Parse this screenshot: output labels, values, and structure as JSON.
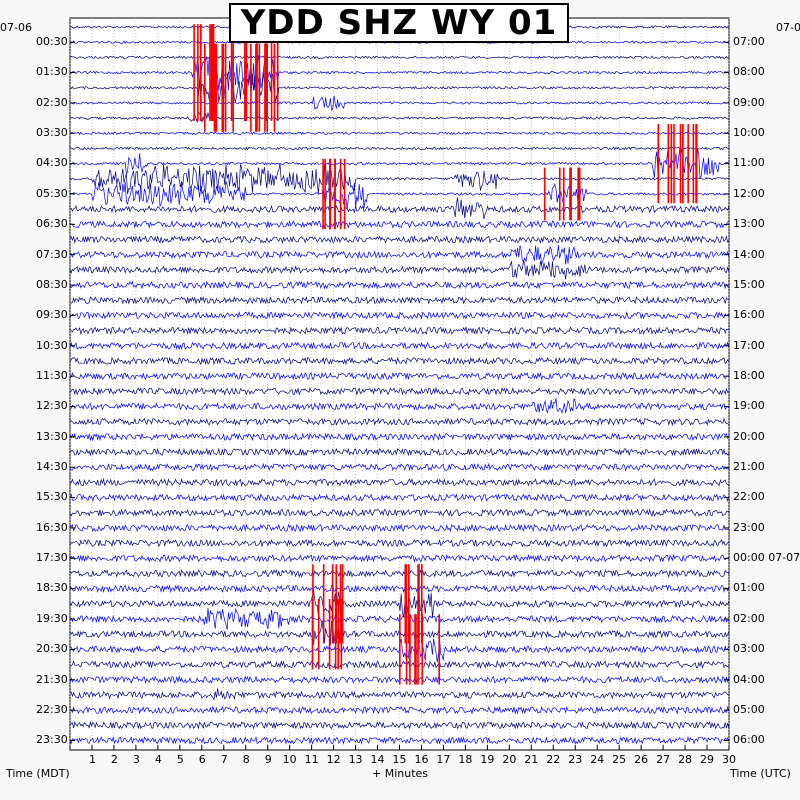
{
  "chart_data": {
    "type": "helicorder",
    "title": "YDD SHZ WY 01",
    "xlabel": "+ Minutes",
    "left_axis_label": "Time (MDT)",
    "right_axis_label": "Time (UTC)",
    "left_date": "07-06",
    "right_date": "07-0",
    "x_ticks": [
      "1",
      "2",
      "3",
      "4",
      "5",
      "6",
      "7",
      "8",
      "9",
      "10",
      "11",
      "12",
      "13",
      "14",
      "15",
      "16",
      "17",
      "18",
      "19",
      "20",
      "21",
      "22",
      "23",
      "24",
      "25",
      "26",
      "27",
      "28",
      "29",
      "30"
    ],
    "x_range": [
      0,
      30
    ],
    "left_times": [
      "00:30",
      "01:30",
      "02:30",
      "03:30",
      "04:30",
      "05:30",
      "06:30",
      "07:30",
      "08:30",
      "09:30",
      "10:30",
      "11:30",
      "12:30",
      "13:30",
      "14:30",
      "15:30",
      "16:30",
      "17:30",
      "18:30",
      "19:30",
      "20:30",
      "21:30",
      "22:30",
      "23:30"
    ],
    "right_times": [
      "07:00",
      "08:00",
      "09:00",
      "10:00",
      "11:00",
      "12:00",
      "13:00",
      "14:00",
      "15:00",
      "16:00",
      "17:00",
      "18:00",
      "19:00",
      "20:00",
      "21:00",
      "22:00",
      "23:00",
      "00:00 07-07",
      "01:00",
      "02:00",
      "03:00",
      "04:00",
      "05:00",
      "06:00"
    ],
    "trace_colors": [
      "#000080",
      "#0000ff"
    ],
    "clip_color": "#ff0000",
    "trace_count": 48,
    "minutes_per_trace": 30,
    "grid": true
  }
}
